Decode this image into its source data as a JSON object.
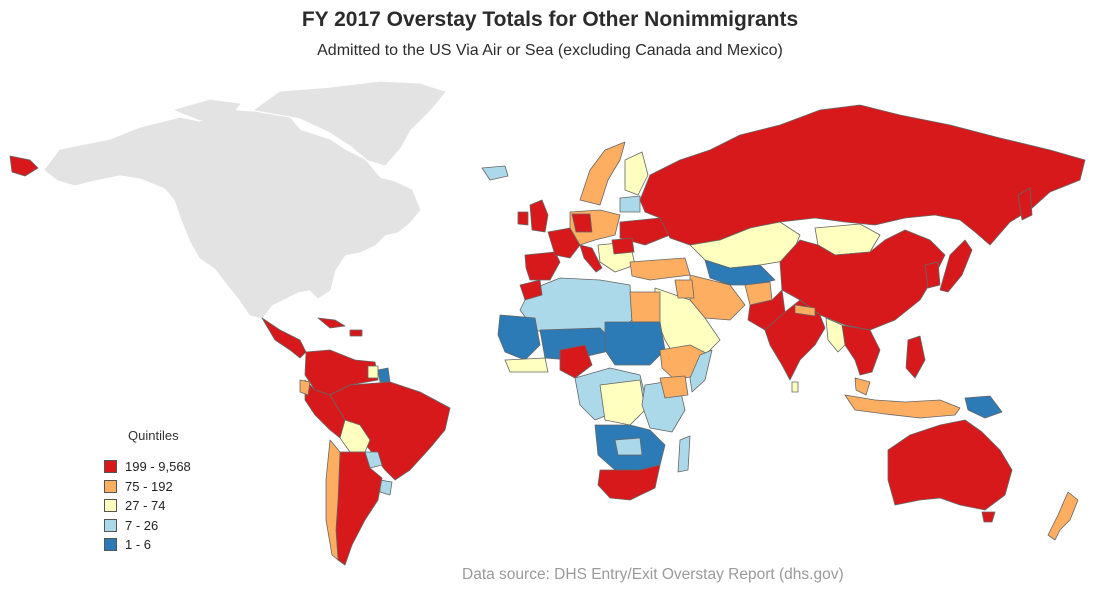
{
  "title": "FY 2017 Overstay Totals for Other Nonimmigrants",
  "subtitle": "Admitted to the US Via Air or Sea (excluding Canada and Mexico)",
  "legend": {
    "title": "Quintiles",
    "items": [
      {
        "label": "199 - 9,568",
        "color": "#d7191c"
      },
      {
        "label": "75 - 192",
        "color": "#fdae61"
      },
      {
        "label": "27 - 74",
        "color": "#ffffbf"
      },
      {
        "label": "7 - 26",
        "color": "#abd9e9"
      },
      {
        "label": "1 - 6",
        "color": "#2c7bb6"
      }
    ]
  },
  "source": "Data source: DHS Entry/Exit Overstay Report (dhs.gov)",
  "colors": {
    "no_data": "#e3e3e3",
    "country_border": "#666666"
  },
  "map_regions": [
    {
      "region": "north-america",
      "class": "no_data"
    },
    {
      "region": "greenland",
      "class": "no_data"
    },
    {
      "region": "alaska-russia-tip",
      "class": "q1"
    },
    {
      "region": "central-america",
      "class": "q1"
    },
    {
      "region": "caribbean",
      "class": "q1"
    },
    {
      "region": "south-america-north",
      "class": "q1"
    },
    {
      "region": "brazil",
      "class": "q1"
    },
    {
      "region": "peru",
      "class": "q1"
    },
    {
      "region": "bolivia",
      "class": "q3"
    },
    {
      "region": "paraguay",
      "class": "q4"
    },
    {
      "region": "uruguay",
      "class": "q4"
    },
    {
      "region": "argentina",
      "class": "q1"
    },
    {
      "region": "chile",
      "class": "q2"
    },
    {
      "region": "iceland",
      "class": "q4"
    },
    {
      "region": "uk-ireland",
      "class": "q1"
    },
    {
      "region": "iberia",
      "class": "q1"
    },
    {
      "region": "france",
      "class": "q1"
    },
    {
      "region": "italy",
      "class": "q1"
    },
    {
      "region": "scandinavia",
      "class": "q2"
    },
    {
      "region": "finland",
      "class": "q3"
    },
    {
      "region": "central-europe",
      "class": "q2"
    },
    {
      "region": "ukraine",
      "class": "q1"
    },
    {
      "region": "balkans",
      "class": "q3"
    },
    {
      "region": "turkey",
      "class": "q2"
    },
    {
      "region": "russia",
      "class": "q1"
    },
    {
      "region": "kazakhstan",
      "class": "q3"
    },
    {
      "region": "mongolia",
      "class": "q3"
    },
    {
      "region": "china",
      "class": "q1"
    },
    {
      "region": "japan",
      "class": "q1"
    },
    {
      "region": "korea",
      "class": "q1"
    },
    {
      "region": "central-asia",
      "class": "q5"
    },
    {
      "region": "iran-afghanistan",
      "class": "q2"
    },
    {
      "region": "arabia",
      "class": "q3"
    },
    {
      "region": "india",
      "class": "q1"
    },
    {
      "region": "southeast-asia",
      "class": "q1"
    },
    {
      "region": "indonesia",
      "class": "q2"
    },
    {
      "region": "philippines",
      "class": "q1"
    },
    {
      "region": "png",
      "class": "q5"
    },
    {
      "region": "australia",
      "class": "q1"
    },
    {
      "region": "new-zealand",
      "class": "q2"
    },
    {
      "region": "north-africa",
      "class": "q4"
    },
    {
      "region": "morocco",
      "class": "q1"
    },
    {
      "region": "egypt",
      "class": "q2"
    },
    {
      "region": "west-africa",
      "class": "q5"
    },
    {
      "region": "nigeria",
      "class": "q1"
    },
    {
      "region": "sudan",
      "class": "q5"
    },
    {
      "region": "ethiopia",
      "class": "q2"
    },
    {
      "region": "central-africa",
      "class": "q4"
    },
    {
      "region": "drc",
      "class": "q3"
    },
    {
      "region": "east-africa",
      "class": "q4"
    },
    {
      "region": "southern-africa",
      "class": "q5"
    },
    {
      "region": "south-africa",
      "class": "q1"
    },
    {
      "region": "madagascar",
      "class": "q4"
    }
  ]
}
